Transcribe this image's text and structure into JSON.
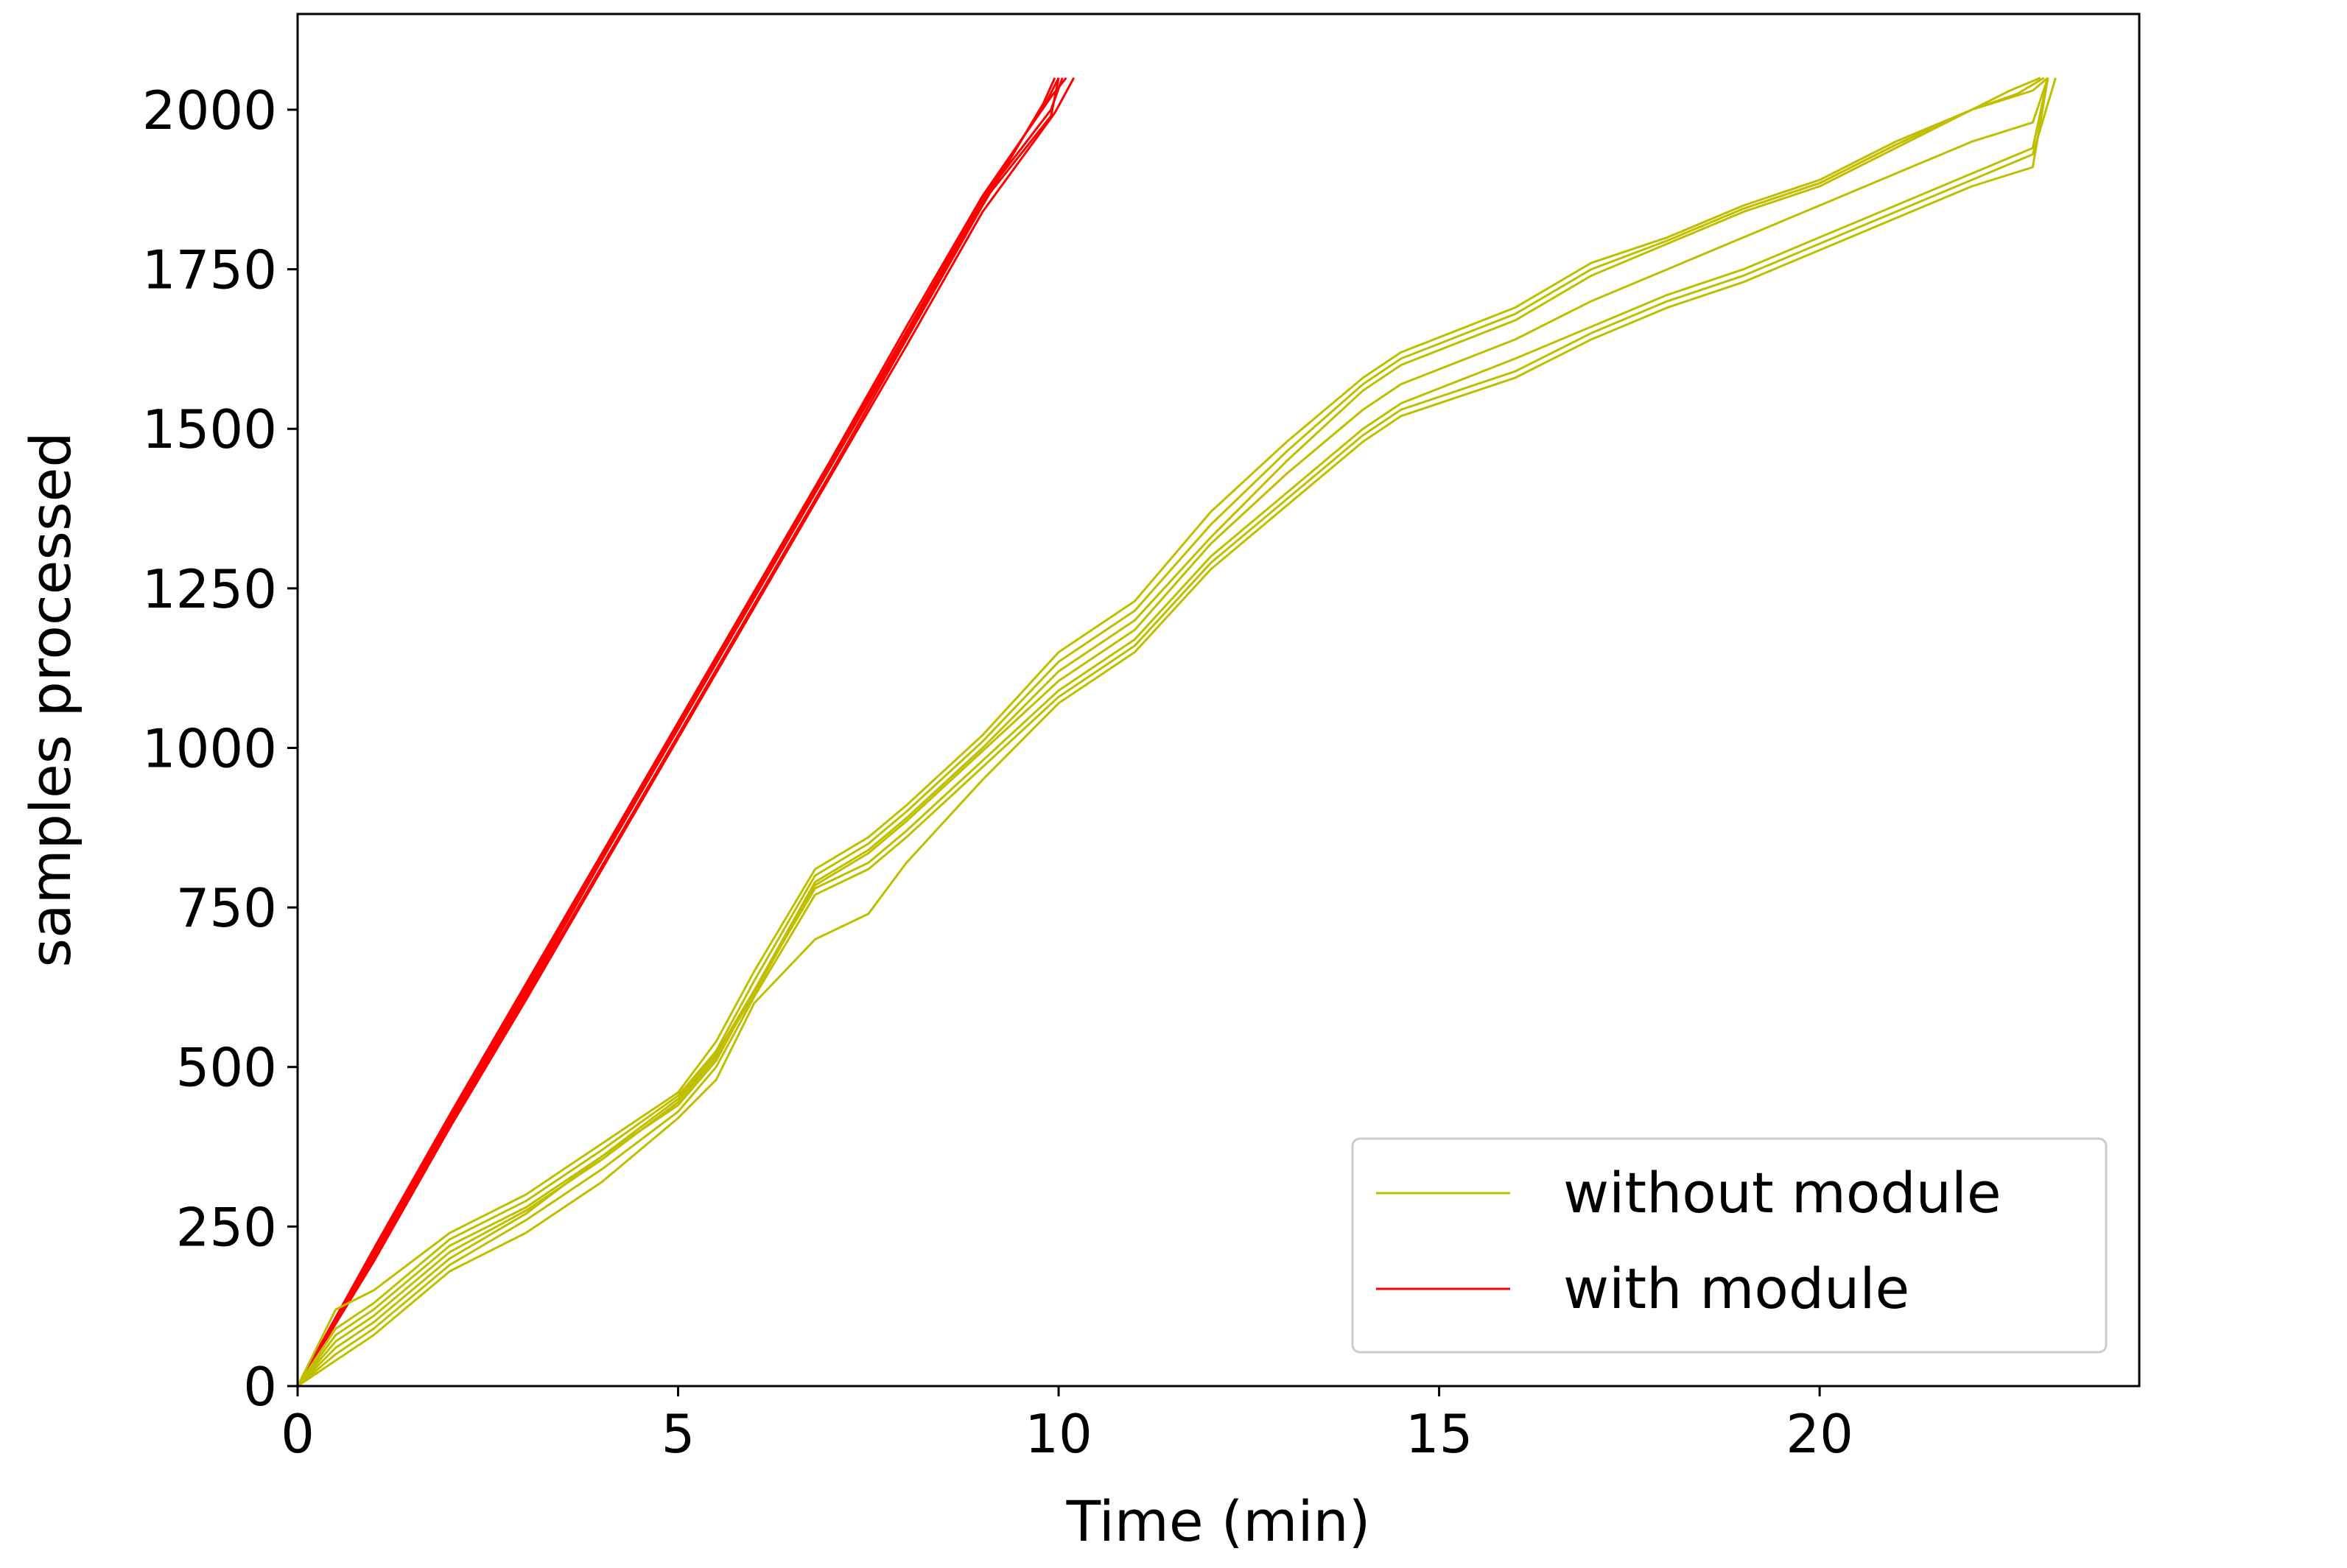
{
  "chart_data": {
    "type": "line",
    "title": "",
    "xlabel": "Time (min)",
    "ylabel": "samples processed",
    "xlim": [
      0,
      24.2
    ],
    "ylim": [
      0,
      2150
    ],
    "xticks": [
      0,
      5,
      10,
      15,
      20
    ],
    "xtick_labels": [
      "0",
      "5",
      "10",
      "15",
      "20"
    ],
    "yticks": [
      0,
      250,
      500,
      750,
      1000,
      1250,
      1500,
      1750,
      2000
    ],
    "ytick_labels": [
      "0",
      "250",
      "500",
      "750",
      "1000",
      "1250",
      "1500",
      "1750",
      "2000"
    ],
    "grid": false,
    "legend_position": "lower-right",
    "legend": [
      {
        "label": "without module",
        "color": "#bfbf00"
      },
      {
        "label": "with module",
        "color": "#ff0000"
      }
    ],
    "series": [
      {
        "name": "with module",
        "color": "#ff0000",
        "x": [
          0,
          1,
          2,
          3,
          4,
          5,
          6,
          7,
          8,
          9,
          9.9,
          10.05
        ],
        "y": [
          0,
          210,
          420,
          620,
          830,
          1030,
          1240,
          1440,
          1650,
          1860,
          2000,
          2050
        ]
      },
      {
        "name": "with module",
        "color": "#ff0000",
        "x": [
          0,
          1,
          2,
          3,
          4,
          5,
          6,
          7,
          8,
          9,
          9.8,
          9.95
        ],
        "y": [
          0,
          200,
          410,
          610,
          815,
          1020,
          1225,
          1430,
          1640,
          1850,
          2010,
          2050
        ]
      },
      {
        "name": "with module",
        "color": "#ff0000",
        "x": [
          0,
          1,
          2,
          3,
          4,
          5,
          6,
          7,
          8,
          9,
          9.9,
          10.1
        ],
        "y": [
          0,
          215,
          425,
          630,
          835,
          1040,
          1245,
          1450,
          1660,
          1865,
          2020,
          2050
        ]
      },
      {
        "name": "with module",
        "color": "#ff0000",
        "x": [
          0,
          1,
          2,
          3,
          4,
          5,
          6,
          7,
          8,
          9,
          9.9,
          10.0
        ],
        "y": [
          0,
          205,
          415,
          615,
          825,
          1030,
          1235,
          1440,
          1645,
          1855,
          1990,
          2050
        ]
      },
      {
        "name": "with module",
        "color": "#ff0000",
        "x": [
          0,
          1,
          2,
          3,
          4,
          5,
          6,
          7,
          8,
          9,
          9.95,
          10.2
        ],
        "y": [
          0,
          195,
          405,
          605,
          810,
          1015,
          1220,
          1425,
          1630,
          1840,
          1995,
          2050
        ]
      },
      {
        "name": "with module",
        "color": "#ff0000",
        "x": [
          0,
          1,
          2,
          3,
          4,
          5,
          6,
          7,
          8,
          9,
          9.85,
          10.0
        ],
        "y": [
          0,
          212,
          422,
          625,
          832,
          1035,
          1242,
          1445,
          1652,
          1860,
          2015,
          2050
        ]
      },
      {
        "name": "without module",
        "color": "#bfbf00",
        "x": [
          0,
          0.5,
          1,
          2,
          3,
          4,
          5,
          5.5,
          6,
          6.8,
          7.5,
          8,
          9,
          10,
          11,
          12,
          13,
          14,
          14.5,
          16,
          17,
          18,
          19,
          20,
          21,
          22,
          22.8,
          23.0
        ],
        "y": [
          0,
          120,
          150,
          240,
          300,
          380,
          460,
          540,
          650,
          810,
          860,
          910,
          1020,
          1150,
          1230,
          1370,
          1480,
          1580,
          1620,
          1690,
          1760,
          1800,
          1850,
          1890,
          1950,
          2000,
          2030,
          2050
        ]
      },
      {
        "name": "without module",
        "color": "#bfbf00",
        "x": [
          0,
          0.5,
          1,
          2,
          3,
          4,
          5,
          5.5,
          6,
          6.8,
          7.5,
          8,
          9,
          10,
          11,
          12,
          13,
          14,
          14.5,
          16,
          17,
          18,
          19,
          20,
          21,
          22,
          22.5,
          22.9
        ],
        "y": [
          0,
          80,
          120,
          220,
          280,
          360,
          440,
          510,
          620,
          790,
          840,
          890,
          1000,
          1120,
          1200,
          1330,
          1450,
          1560,
          1600,
          1670,
          1740,
          1790,
          1840,
          1880,
          1940,
          2000,
          2030,
          2050
        ]
      },
      {
        "name": "without module",
        "color": "#bfbf00",
        "x": [
          0,
          0.5,
          1,
          2,
          3,
          4,
          5,
          5.5,
          6,
          6.8,
          7.5,
          8,
          9,
          10,
          11,
          12,
          13,
          14,
          14.5,
          16,
          17,
          18,
          19,
          20,
          21,
          22,
          22.8,
          23.0
        ],
        "y": [
          0,
          60,
          100,
          200,
          270,
          360,
          450,
          520,
          620,
          780,
          820,
          870,
          980,
          1090,
          1170,
          1300,
          1400,
          1500,
          1540,
          1610,
          1660,
          1710,
          1750,
          1800,
          1850,
          1900,
          1940,
          2050
        ]
      },
      {
        "name": "without module",
        "color": "#bfbf00",
        "x": [
          0,
          0.5,
          1,
          2,
          3,
          4,
          5,
          5.5,
          6,
          6.8,
          7.5,
          8,
          9,
          10,
          11,
          12,
          13,
          14,
          14.5,
          16,
          17,
          18,
          19,
          20,
          21,
          22,
          22.8,
          23.1
        ],
        "y": [
          0,
          50,
          90,
          190,
          260,
          340,
          430,
          500,
          610,
          770,
          810,
          860,
          970,
          1080,
          1160,
          1290,
          1390,
          1490,
          1530,
          1590,
          1650,
          1700,
          1740,
          1790,
          1840,
          1890,
          1930,
          2050
        ]
      },
      {
        "name": "without module",
        "color": "#bfbf00",
        "x": [
          0,
          0.5,
          1,
          2,
          3,
          4,
          5,
          5.5,
          6,
          6.8,
          7.5,
          8,
          9,
          10,
          11,
          12,
          13,
          14,
          14.5,
          16,
          17,
          18,
          19,
          20,
          21,
          22,
          22.8,
          23.0
        ],
        "y": [
          0,
          70,
          110,
          210,
          275,
          355,
          445,
          515,
          615,
          785,
          835,
          885,
          995,
          1105,
          1185,
          1320,
          1430,
          1530,
          1570,
          1640,
          1700,
          1750,
          1800,
          1850,
          1900,
          1950,
          1980,
          2050
        ]
      },
      {
        "name": "without module",
        "color": "#bfbf00",
        "x": [
          0,
          0.5,
          1,
          2,
          3,
          4,
          5,
          5.5,
          6,
          6.8,
          7.5,
          8,
          9,
          10,
          11,
          12,
          13,
          14,
          14.5,
          16,
          17,
          18,
          19,
          20,
          21,
          22,
          22.6,
          22.95
        ],
        "y": [
          0,
          90,
          130,
          230,
          290,
          370,
          455,
          525,
          635,
          800,
          850,
          900,
          1010,
          1135,
          1215,
          1350,
          1465,
          1570,
          1610,
          1680,
          1750,
          1795,
          1845,
          1885,
          1945,
          2000,
          2025,
          2050
        ]
      },
      {
        "name": "without module",
        "color": "#bfbf00",
        "x": [
          0,
          0.5,
          1,
          2,
          3,
          4,
          5,
          5.5,
          6,
          6.8,
          7.5,
          8,
          9,
          10,
          11,
          12,
          13,
          14,
          14.5,
          16,
          17,
          18,
          19,
          20,
          21,
          22,
          22.8,
          23.0
        ],
        "y": [
          0,
          40,
          80,
          180,
          240,
          320,
          420,
          480,
          600,
          700,
          740,
          820,
          950,
          1070,
          1150,
          1280,
          1380,
          1480,
          1520,
          1580,
          1640,
          1690,
          1730,
          1780,
          1830,
          1880,
          1910,
          2050
        ]
      }
    ]
  }
}
